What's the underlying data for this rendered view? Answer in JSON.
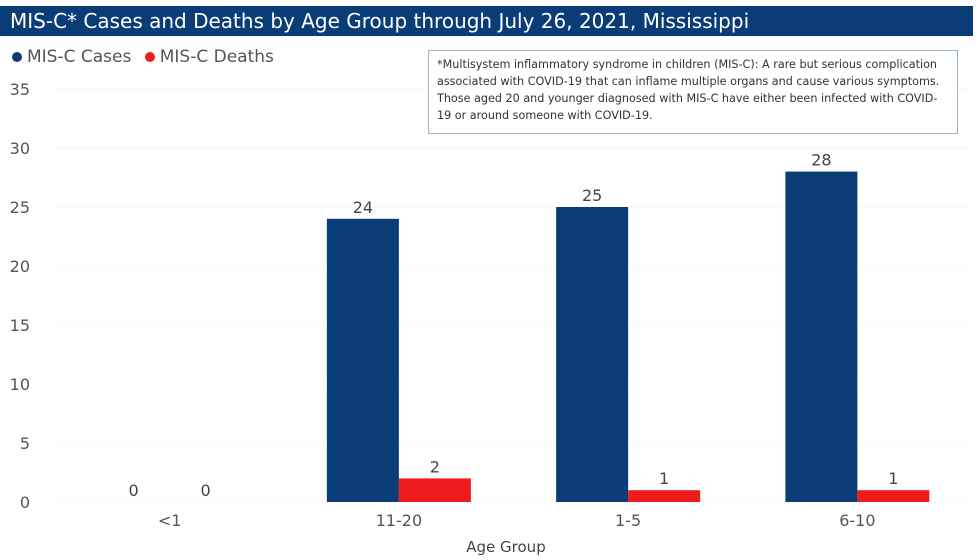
{
  "chart_data": {
    "type": "bar",
    "title": "MIS-C* Cases and Deaths by Age Group through July 26, 2021, Mississippi",
    "xlabel": "Age Group",
    "ylabel": "",
    "categories": [
      "<1",
      "11-20",
      "1-5",
      "6-10"
    ],
    "series": [
      {
        "name": "MIS-C Cases",
        "values": [
          0,
          24,
          25,
          28
        ],
        "color": "#0a3d78"
      },
      {
        "name": "MIS-C Deaths",
        "values": [
          0,
          2,
          1,
          1
        ],
        "color": "#ee1c1c"
      }
    ],
    "ylim": [
      0,
      35
    ],
    "yticks": [
      0,
      5,
      10,
      15,
      20,
      25,
      30,
      35
    ],
    "grid": true,
    "legend_position": "top-left",
    "annotation": "*Multisystem inflammatory syndrome in children (MIS-C): A rare but serious complication associated with COVID-19 that can inflame multiple organs and cause various symptoms. Those aged 20 and younger diagnosed with MIS-C have either been infected with COVID-19 or around someone with COVID-19."
  }
}
